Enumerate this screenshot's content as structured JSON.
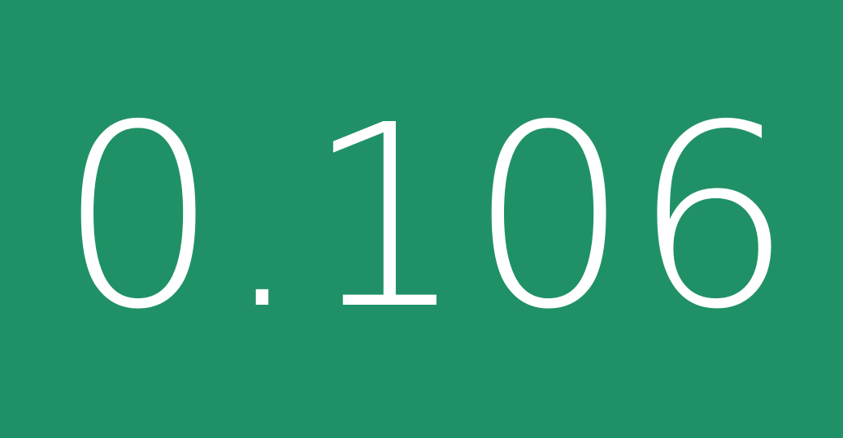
{
  "metric": {
    "value": "0.106"
  },
  "colors": {
    "background": "#209166",
    "text": "#ffffff"
  }
}
